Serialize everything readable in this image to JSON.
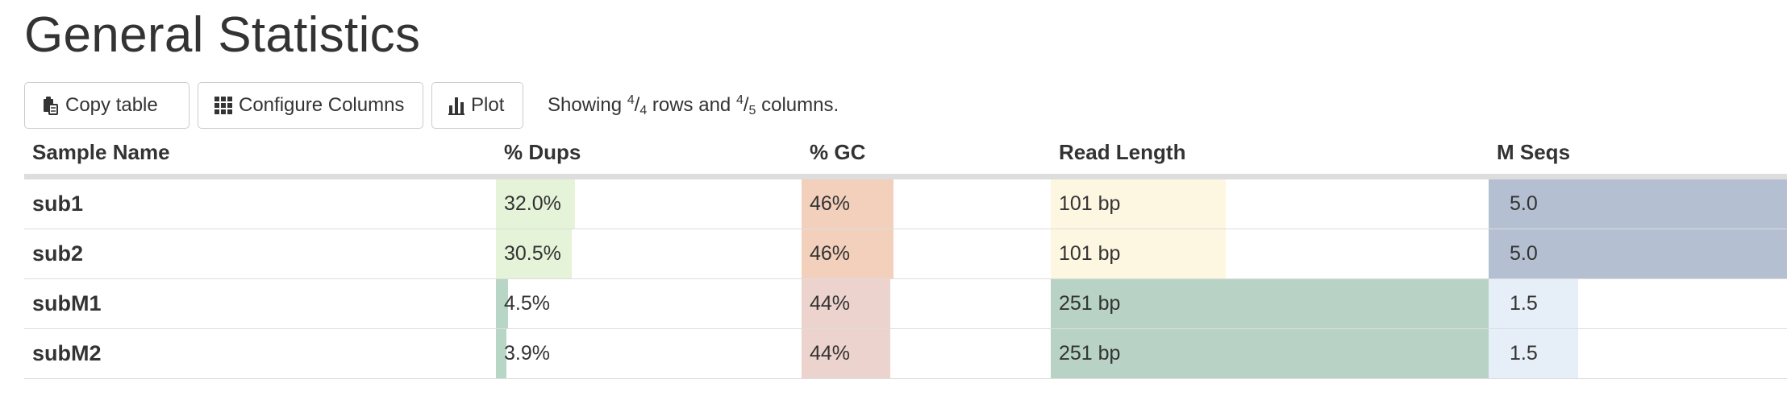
{
  "page": {
    "title": "General Statistics"
  },
  "toolbar": {
    "copy_label": "Copy table",
    "configure_label": "Configure Columns",
    "plot_label": "Plot",
    "status": {
      "prefix": "Showing ",
      "rows_shown": "4",
      "rows_total": "4",
      "middle": " rows and ",
      "cols_shown": "4",
      "cols_total": "5",
      "suffix": " columns."
    }
  },
  "table": {
    "headers": {
      "sample": "Sample Name",
      "dups": "% Dups",
      "gc": "% GC",
      "read_length": "Read Length",
      "mseqs": "M Seqs"
    },
    "rows": [
      {
        "sample": "sub1",
        "dups": "32.0%",
        "dups_pct": 26,
        "gc": "46%",
        "gc_pct": 37,
        "read_length": "101 bp",
        "read_length_pct": 40,
        "mseqs": "5.0",
        "mseqs_pct": 100
      },
      {
        "sample": "sub2",
        "dups": "30.5%",
        "dups_pct": 25,
        "gc": "46%",
        "gc_pct": 37,
        "read_length": "101 bp",
        "read_length_pct": 40,
        "mseqs": "5.0",
        "mseqs_pct": 100
      },
      {
        "sample": "subM1",
        "dups": "4.5%",
        "dups_pct": 4,
        "gc": "44%",
        "gc_pct": 35.5,
        "read_length": "251 bp",
        "read_length_pct": 100,
        "mseqs": "1.5",
        "mseqs_pct": 30
      },
      {
        "sample": "subM2",
        "dups": "3.9%",
        "dups_pct": 3.5,
        "gc": "44%",
        "gc_pct": 35.5,
        "read_length": "251 bp",
        "read_length_pct": 100,
        "mseqs": "1.5",
        "mseqs_pct": 30
      }
    ]
  },
  "colors": {
    "text": "#333333",
    "border": "#cccccc",
    "row_border": "#dddddd",
    "dups_high": "#e5f3d8",
    "dups_low": "#b8d6c6",
    "gc_high": "#f3d0bc",
    "gc_low": "#edd3cd",
    "read_length_short": "#fdf6e1",
    "read_length_long": "#b8d3c6",
    "mseqs_high": "#b4bfd1",
    "mseqs_low": "#e6eef7"
  },
  "icons": {
    "copy": "clipboard-icon",
    "configure": "grid-icon",
    "plot": "bar-chart-icon"
  }
}
